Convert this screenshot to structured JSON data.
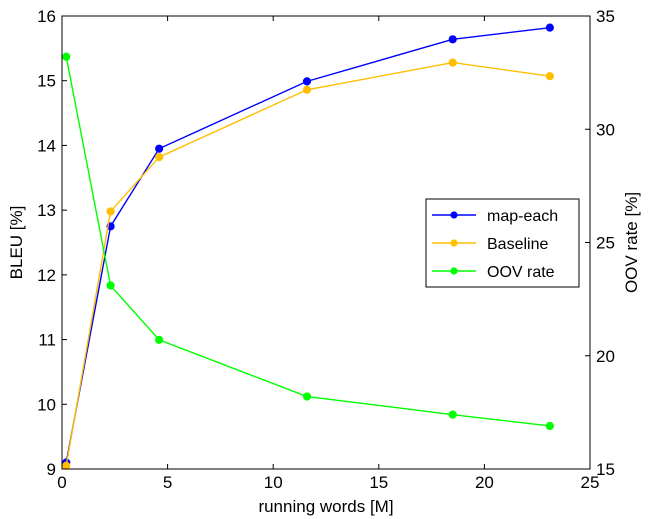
{
  "chart_data": {
    "type": "line",
    "title": "",
    "xlabel": "running words [M]",
    "ylabel": "BLEU [%]",
    "y2label": "OOV rate [%]",
    "xlim": [
      0,
      25
    ],
    "ylim": [
      9,
      16
    ],
    "y2lim": [
      15,
      35
    ],
    "xticks": [
      0,
      5,
      10,
      15,
      20,
      25
    ],
    "yticks": [
      9,
      10,
      11,
      12,
      13,
      14,
      15,
      16
    ],
    "y2ticks": [
      15,
      20,
      25,
      30,
      35
    ],
    "grid": false,
    "legend_position": "center-right",
    "series": [
      {
        "name": "map-each",
        "axis": "left",
        "color": "#0000ff",
        "x": [
          0.2,
          2.3,
          4.6,
          11.6,
          18.5,
          23.1
        ],
        "y": [
          9.1,
          12.75,
          13.95,
          14.99,
          15.64,
          15.82
        ]
      },
      {
        "name": "Baseline",
        "axis": "left",
        "color": "#ffbf00",
        "x": [
          0.2,
          2.3,
          4.6,
          11.6,
          18.5,
          23.1
        ],
        "y": [
          9.05,
          12.98,
          13.82,
          14.86,
          15.28,
          15.07
        ]
      },
      {
        "name": "OOV rate",
        "axis": "right",
        "color": "#00ff00",
        "x": [
          0.2,
          2.3,
          4.6,
          11.6,
          18.5,
          23.1
        ],
        "y": [
          33.2,
          23.1,
          20.7,
          18.2,
          17.4,
          16.9
        ]
      }
    ]
  }
}
